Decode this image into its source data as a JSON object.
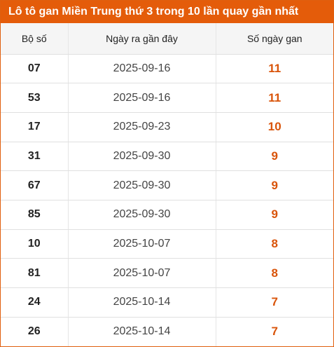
{
  "title": "Lô tô gan Miền Trung thứ 3 trong 10 lần quay gần nhất",
  "colors": {
    "header_bg": "#e45c0a",
    "header_text": "#ffffff",
    "accent_number": "#d9540a"
  },
  "table": {
    "columns": [
      "Bộ số",
      "Ngày ra gần đây",
      "Số ngày gan"
    ],
    "rows": [
      {
        "lo": "07",
        "date": "2025-09-16",
        "days": "11"
      },
      {
        "lo": "53",
        "date": "2025-09-16",
        "days": "11"
      },
      {
        "lo": "17",
        "date": "2025-09-23",
        "days": "10"
      },
      {
        "lo": "31",
        "date": "2025-09-30",
        "days": "9"
      },
      {
        "lo": "67",
        "date": "2025-09-30",
        "days": "9"
      },
      {
        "lo": "85",
        "date": "2025-09-30",
        "days": "9"
      },
      {
        "lo": "10",
        "date": "2025-10-07",
        "days": "8"
      },
      {
        "lo": "81",
        "date": "2025-10-07",
        "days": "8"
      },
      {
        "lo": "24",
        "date": "2025-10-14",
        "days": "7"
      },
      {
        "lo": "26",
        "date": "2025-10-14",
        "days": "7"
      }
    ]
  }
}
